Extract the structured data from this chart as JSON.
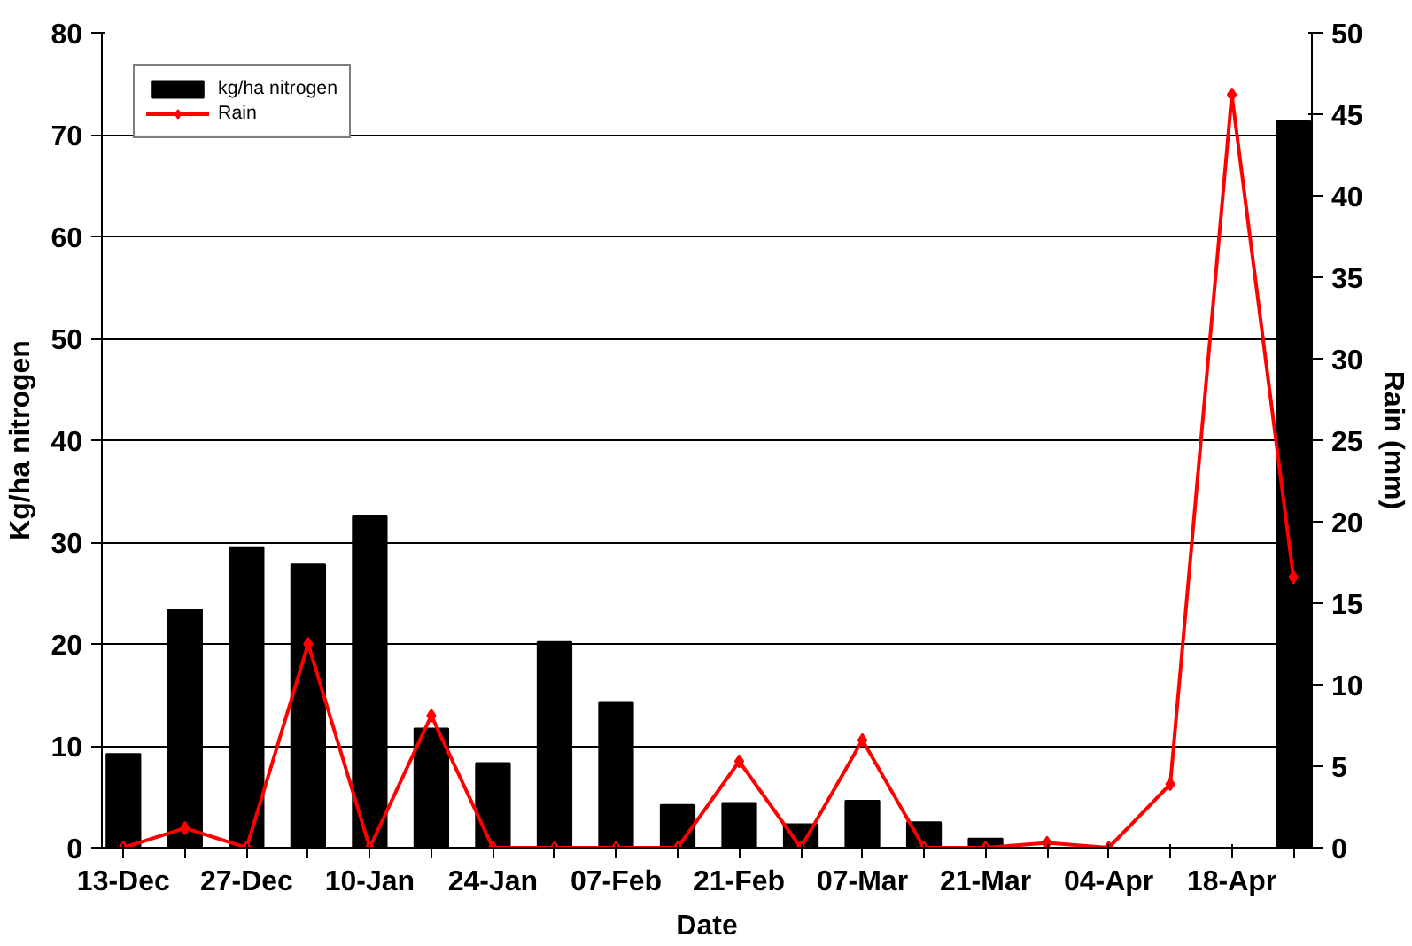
{
  "chart_data": {
    "type": "bar",
    "xlabel": "Date",
    "ylabel": "Kg/ha nitrogen",
    "y2label": "Rain (mm)",
    "categories": [
      "13-Dec",
      null,
      "27-Dec",
      null,
      "10-Jan",
      null,
      "24-Jan",
      null,
      "07-Feb",
      null,
      "21-Feb",
      null,
      "07-Mar",
      null,
      "21-Mar",
      null,
      "04-Apr",
      null,
      "18-Apr",
      null
    ],
    "series": [
      {
        "name": "kg/ha nitrogen",
        "color": "#000000",
        "values": [
          9.2,
          23.4,
          29.5,
          27.8,
          32.6,
          11.7,
          8.3,
          20.2,
          14.3,
          4.2,
          4.4,
          2.3,
          4.6,
          2.5,
          0.9,
          null,
          null,
          null,
          null,
          71.3
        ]
      },
      {
        "name": "Rain",
        "type": "line",
        "axis": "y2",
        "color": "#ff0000",
        "marker": "diamond",
        "values": [
          0,
          1.2,
          0,
          12.5,
          0,
          8.1,
          0,
          0,
          0,
          0,
          5.3,
          0,
          6.6,
          0,
          0,
          0.3,
          0,
          3.9,
          46.2,
          16.6
        ]
      }
    ],
    "ylim": [
      0,
      80
    ],
    "yticks": [
      0,
      10,
      20,
      30,
      40,
      50,
      60,
      70,
      80
    ],
    "y2lim": [
      0,
      50
    ],
    "y2ticks": [
      0,
      5,
      10,
      15,
      20,
      25,
      30,
      35,
      40,
      45,
      50
    ],
    "grid": "y",
    "legend": "top left"
  }
}
